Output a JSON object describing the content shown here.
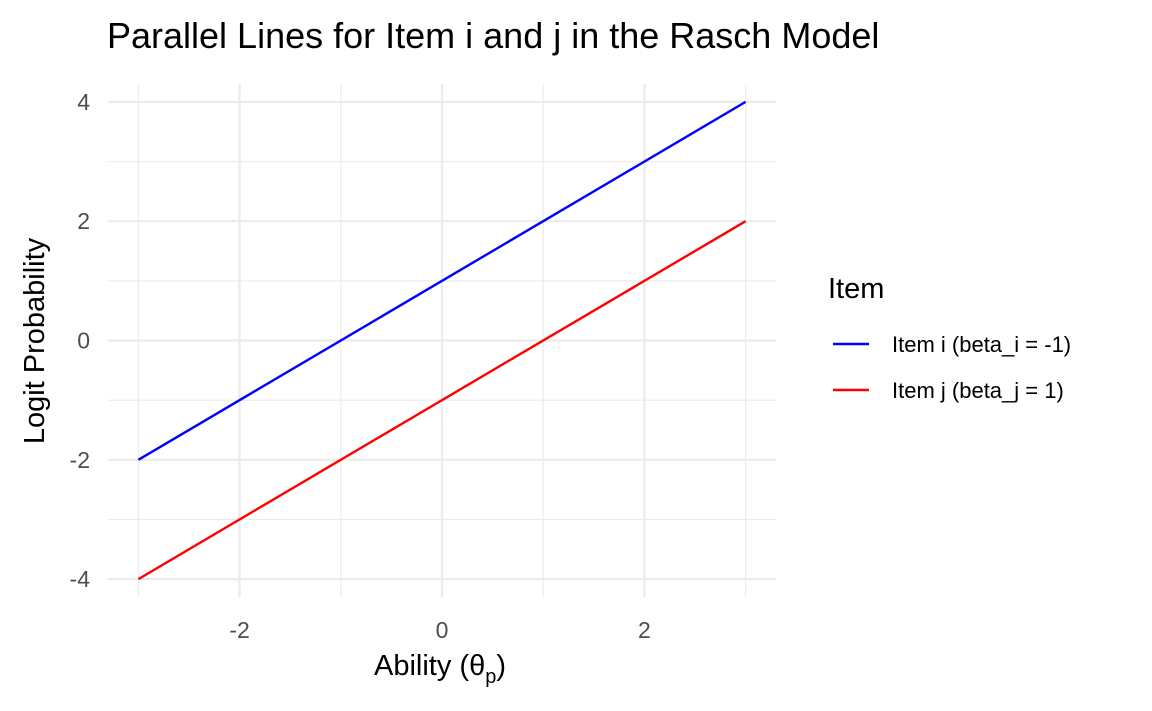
{
  "chart_data": {
    "type": "line",
    "title": "Parallel Lines for Item i and j in the Rasch Model",
    "xlabel_main": "Ability (",
    "xlabel_symbol": "θ",
    "xlabel_subscript": "p",
    "xlabel_close": ")",
    "ylabel": "Logit Probability",
    "xlim": [
      -3.3,
      3.3
    ],
    "ylim": [
      -4.3,
      4.3
    ],
    "x_ticks": [
      -2,
      0,
      2
    ],
    "y_ticks": [
      -4,
      -2,
      0,
      2,
      4
    ],
    "grid": true,
    "legend": {
      "title": "Item",
      "position": "right"
    },
    "series": [
      {
        "name": "Item i (beta_i = -1)",
        "color": "#0000ff",
        "x": [
          -3,
          3
        ],
        "y": [
          -2,
          4
        ]
      },
      {
        "name": "Item j (beta_j = 1)",
        "color": "#ff0000",
        "x": [
          -3,
          3
        ],
        "y": [
          -4,
          2
        ]
      }
    ]
  }
}
